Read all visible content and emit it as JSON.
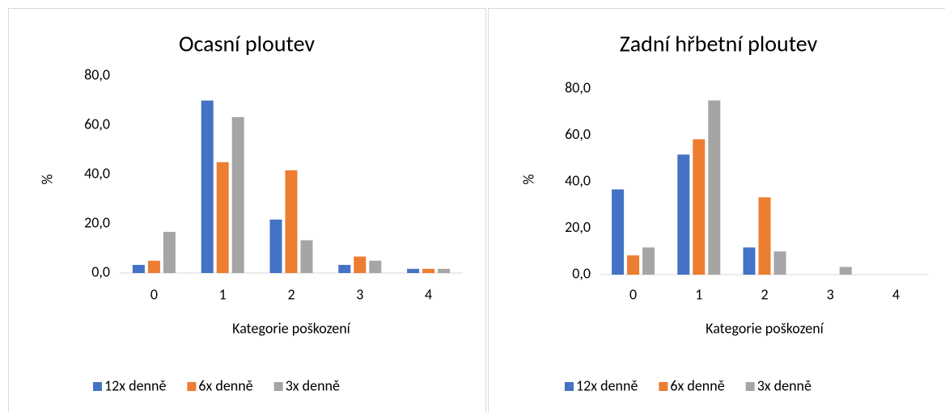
{
  "chart_data": [
    {
      "type": "bar",
      "title": "Ocasní ploutev",
      "x_label": "Kategorie poškození",
      "y_label": "%",
      "categories": [
        "0",
        "1",
        "2",
        "3",
        "4"
      ],
      "series": [
        {
          "name": "12x denně",
          "color": "#4472c4",
          "values": [
            3.3,
            70.0,
            21.7,
            3.3,
            1.7
          ]
        },
        {
          "name": "6x denně",
          "color": "#ed7d31",
          "values": [
            5.0,
            45.0,
            41.7,
            6.7,
            1.7
          ]
        },
        {
          "name": "3x denně",
          "color": "#a5a5a5",
          "values": [
            16.7,
            63.3,
            13.3,
            5.0,
            1.7
          ]
        }
      ],
      "ylim": [
        0,
        80
      ],
      "yticks": [
        {
          "value": 0,
          "label": "0,0"
        },
        {
          "value": 20,
          "label": "20,0"
        },
        {
          "value": 40,
          "label": "40,0"
        },
        {
          "value": 60,
          "label": "60,0"
        },
        {
          "value": 80,
          "label": "80,0"
        }
      ],
      "legend": "bottom"
    },
    {
      "type": "bar",
      "title": "Zadní hřbetní ploutev",
      "x_label": "Kategorie poškození",
      "y_label": "%",
      "categories": [
        "0",
        "1",
        "2",
        "3",
        "4"
      ],
      "series": [
        {
          "name": "12x denně",
          "color": "#4472c4",
          "values": [
            36.7,
            51.7,
            11.7,
            0,
            0
          ]
        },
        {
          "name": "6x denně",
          "color": "#ed7d31",
          "values": [
            8.3,
            58.3,
            33.3,
            0,
            0
          ]
        },
        {
          "name": "3x denně",
          "color": "#a5a5a5",
          "values": [
            11.7,
            75.0,
            10.0,
            3.3,
            0
          ]
        }
      ],
      "ylim": [
        0,
        80
      ],
      "yticks": [
        {
          "value": 0,
          "label": "0,0"
        },
        {
          "value": 20,
          "label": "20,0"
        },
        {
          "value": 40,
          "label": "40,0"
        },
        {
          "value": 60,
          "label": "60,0"
        },
        {
          "value": 80,
          "label": "80,0"
        }
      ],
      "legend": "bottom"
    }
  ]
}
